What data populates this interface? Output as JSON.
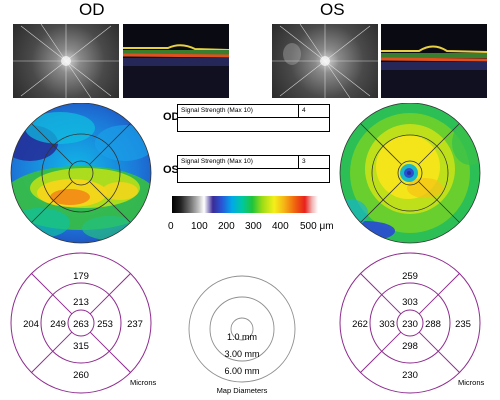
{
  "eyes": {
    "od": {
      "title": "OD",
      "signal_label": "OD",
      "signal_text": "Signal Strength (Max 10)",
      "signal_value": "4"
    },
    "os": {
      "title": "OS",
      "signal_label": "OS",
      "signal_text": "Signal Strength (Max 10)",
      "signal_value": "3"
    }
  },
  "scale": {
    "labels": [
      "0",
      "100",
      "200",
      "300",
      "400",
      "500 μm"
    ]
  },
  "od_values": {
    "outer_top": "179",
    "outer_left": "204",
    "outer_right": "237",
    "outer_bottom": "260",
    "inner_top": "213",
    "inner_left": "249",
    "center": "263",
    "inner_right": "253",
    "inner_bottom": "315",
    "units": "Microns"
  },
  "os_values": {
    "outer_top": "259",
    "outer_left": "262",
    "outer_right": "235",
    "outer_bottom": "230",
    "inner_top": "303",
    "inner_left": "303",
    "center": "230",
    "inner_right": "288",
    "inner_bottom": "298",
    "units": "Microns"
  },
  "diameters": {
    "d1": "1.0 mm",
    "d2": "3.00 mm",
    "d3": "6.00 mm",
    "caption": "Map Diameters"
  },
  "colors": {
    "grid_purple": "#8e2c8f"
  }
}
